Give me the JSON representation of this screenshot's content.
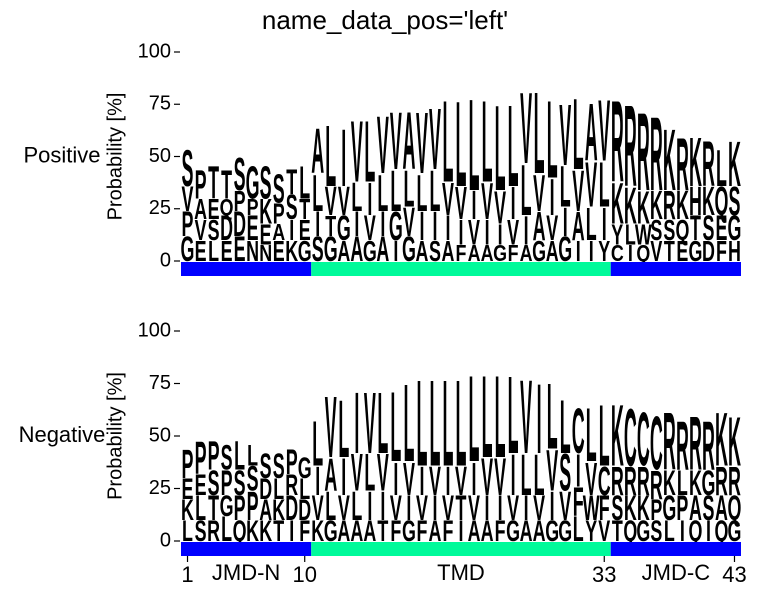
{
  "title": "name_data_pos='left'",
  "xlim": [
    1,
    43
  ],
  "xticks": [
    1,
    10,
    33,
    43
  ],
  "regions": [
    {
      "name": "JMD-N",
      "start": 1,
      "end": 10,
      "color": "#0000ff"
    },
    {
      "name": "TMD",
      "start": 11,
      "end": 33,
      "color": "#00fa9a"
    },
    {
      "name": "JMD-C",
      "start": 34,
      "end": 43,
      "color": "#0000ff"
    }
  ],
  "letter_colors": {
    "A": "#000000",
    "V": "#000000",
    "L": "#000000",
    "I": "#000000",
    "F": "#000000",
    "M": "#000000",
    "W": "#000000",
    "P": "#000000",
    "G": "#33cc33",
    "S": "#33cc33",
    "T": "#33cc33",
    "Y": "#33cc33",
    "C": "#33cc33",
    "K": "#1f3fc8",
    "R": "#1f3fc8",
    "H": "#1f3fc8",
    "D": "#d40000",
    "E": "#d40000",
    "N": "#cc00cc",
    "Q": "#cc00cc"
  },
  "chart_data": [
    {
      "type": "logo",
      "name": "Positive",
      "ylabel": "Probability [%]",
      "ylim": [
        0,
        100
      ],
      "yticks": [
        0,
        25,
        50,
        75,
        100
      ],
      "positions": [
        {
          "letters": "SVPG",
          "values": [
            18,
            12,
            12,
            12
          ]
        },
        {
          "letters": "PAVE",
          "values": [
            14,
            10,
            10,
            10
          ]
        },
        {
          "letters": "TESL",
          "values": [
            16,
            10,
            10,
            10
          ]
        },
        {
          "letters": "TQDE",
          "values": [
            14,
            8,
            12,
            10
          ]
        },
        {
          "letters": "SPDE",
          "values": [
            16,
            10,
            12,
            12
          ]
        },
        {
          "letters": "GPEN",
          "values": [
            16,
            8,
            12,
            10
          ]
        },
        {
          "letters": "SKEN",
          "values": [
            16,
            12,
            10,
            8
          ]
        },
        {
          "letters": "SPAE",
          "values": [
            14,
            10,
            8,
            10
          ]
        },
        {
          "letters": "TSIK",
          "values": [
            12,
            12,
            10,
            10
          ]
        },
        {
          "letters": "LTEG",
          "values": [
            16,
            10,
            10,
            10
          ]
        },
        {
          "letters": "ALIS",
          "values": [
            22,
            18,
            12,
            12
          ]
        },
        {
          "letters": "LVTG",
          "values": [
            30,
            14,
            10,
            12
          ]
        },
        {
          "letters": "IVGA",
          "values": [
            28,
            14,
            12,
            10
          ]
        },
        {
          "letters": "VLIA",
          "values": [
            30,
            14,
            12,
            12
          ]
        },
        {
          "letters": "LIVG",
          "values": [
            30,
            16,
            12,
            10
          ]
        },
        {
          "letters": "VLIA",
          "values": [
            28,
            18,
            12,
            12
          ]
        },
        {
          "letters": "VLGI",
          "values": [
            28,
            20,
            14,
            10
          ]
        },
        {
          "letters": "ALVG",
          "values": [
            28,
            18,
            14,
            12
          ]
        },
        {
          "letters": "VLIA",
          "values": [
            30,
            18,
            14,
            10
          ]
        },
        {
          "letters": "VLIS",
          "values": [
            30,
            20,
            14,
            10
          ]
        },
        {
          "letters": "LVIA",
          "values": [
            40,
            16,
            12,
            10
          ]
        },
        {
          "letters": "LVIF",
          "values": [
            42,
            16,
            12,
            8
          ]
        },
        {
          "letters": "LIVA",
          "values": [
            45,
            14,
            12,
            8
          ]
        },
        {
          "letters": "LVIA",
          "values": [
            40,
            18,
            12,
            8
          ]
        },
        {
          "letters": "LVIG",
          "values": [
            42,
            16,
            10,
            8
          ]
        },
        {
          "letters": "LIVF",
          "values": [
            40,
            16,
            12,
            8
          ]
        },
        {
          "letters": "VLIA",
          "values": [
            35,
            25,
            14,
            8
          ]
        },
        {
          "letters": "LVAG",
          "values": [
            40,
            18,
            14,
            10
          ]
        },
        {
          "letters": "LIVA",
          "values": [
            38,
            18,
            12,
            10
          ]
        },
        {
          "letters": "VLIG",
          "values": [
            30,
            20,
            14,
            12
          ]
        },
        {
          "letters": "LVAI",
          "values": [
            35,
            20,
            14,
            10
          ]
        },
        {
          "letters": "AVLI",
          "values": [
            28,
            22,
            16,
            10
          ]
        },
        {
          "letters": "VLIY",
          "values": [
            30,
            22,
            16,
            10
          ]
        },
        {
          "letters": "RKYC",
          "values": [
            40,
            20,
            10,
            8
          ]
        },
        {
          "letters": "RKLI",
          "values": [
            40,
            18,
            10,
            8
          ]
        },
        {
          "letters": "RKWQ",
          "values": [
            38,
            16,
            10,
            8
          ]
        },
        {
          "letters": "RKSV",
          "values": [
            36,
            14,
            10,
            10
          ]
        },
        {
          "letters": "KRST",
          "values": [
            30,
            14,
            10,
            10
          ]
        },
        {
          "letters": "RKQE",
          "values": [
            26,
            14,
            10,
            10
          ]
        },
        {
          "letters": "KHTG",
          "values": [
            24,
            14,
            12,
            10
          ]
        },
        {
          "letters": "RKSD",
          "values": [
            22,
            14,
            12,
            10
          ]
        },
        {
          "letters": "LQEF",
          "values": [
            18,
            14,
            12,
            10
          ]
        },
        {
          "letters": "KSGH",
          "values": [
            22,
            14,
            12,
            10
          ]
        }
      ]
    },
    {
      "type": "logo",
      "name": "Negative",
      "ylabel": "Probability [%]",
      "ylim": [
        0,
        100
      ],
      "yticks": [
        0,
        25,
        50,
        75,
        100
      ],
      "positions": [
        {
          "letters": "PEKL",
          "values": [
            14,
            10,
            10,
            10
          ]
        },
        {
          "letters": "PELS",
          "values": [
            16,
            10,
            12,
            10
          ]
        },
        {
          "letters": "PSTR",
          "values": [
            14,
            12,
            12,
            10
          ]
        },
        {
          "letters": "SPGL",
          "values": [
            12,
            12,
            10,
            12
          ]
        },
        {
          "letters": "LSPQ",
          "values": [
            14,
            12,
            12,
            10
          ]
        },
        {
          "letters": "LSPK",
          "values": [
            10,
            12,
            14,
            10
          ]
        },
        {
          "letters": "SDAK",
          "values": [
            12,
            10,
            10,
            10
          ]
        },
        {
          "letters": "SLKT",
          "values": [
            12,
            10,
            10,
            10
          ]
        },
        {
          "letters": "PRDI",
          "values": [
            12,
            10,
            12,
            10
          ]
        },
        {
          "letters": "GLDF",
          "values": [
            10,
            10,
            10,
            10
          ]
        },
        {
          "letters": "LIVK",
          "values": [
            22,
            14,
            12,
            10
          ]
        },
        {
          "letters": "VALG",
          "values": [
            30,
            16,
            14,
            10
          ]
        },
        {
          "letters": "LIVA",
          "values": [
            28,
            18,
            12,
            10
          ]
        },
        {
          "letters": "IVLA",
          "values": [
            30,
            18,
            14,
            10
          ]
        },
        {
          "letters": "VLIA",
          "values": [
            30,
            18,
            14,
            10
          ]
        },
        {
          "letters": "LVIT",
          "values": [
            30,
            18,
            14,
            10
          ]
        },
        {
          "letters": "LIVF",
          "values": [
            34,
            16,
            12,
            10
          ]
        },
        {
          "letters": "LVIG",
          "values": [
            38,
            16,
            12,
            10
          ]
        },
        {
          "letters": "LIVF",
          "values": [
            42,
            14,
            12,
            10
          ]
        },
        {
          "letters": "LVIA",
          "values": [
            42,
            14,
            12,
            10
          ]
        },
        {
          "letters": "LIVF",
          "values": [
            42,
            14,
            12,
            10
          ]
        },
        {
          "letters": "LVTI",
          "values": [
            42,
            14,
            12,
            10
          ]
        },
        {
          "letters": "LIVA",
          "values": [
            42,
            16,
            12,
            10
          ]
        },
        {
          "letters": "LVIA",
          "values": [
            40,
            18,
            12,
            10
          ]
        },
        {
          "letters": "LVIF",
          "values": [
            40,
            18,
            12,
            10
          ]
        },
        {
          "letters": "LIVG",
          "values": [
            38,
            20,
            12,
            10
          ]
        },
        {
          "letters": "VLIA",
          "values": [
            36,
            20,
            12,
            10
          ]
        },
        {
          "letters": "ILVA",
          "values": [
            34,
            20,
            12,
            10
          ]
        },
        {
          "letters": "LVIG",
          "values": [
            32,
            20,
            14,
            10
          ]
        },
        {
          "letters": "LSVG",
          "values": [
            26,
            18,
            14,
            10
          ]
        },
        {
          "letters": "CIFL",
          "values": [
            22,
            16,
            14,
            12
          ]
        },
        {
          "letters": "LVWY",
          "values": [
            26,
            16,
            12,
            10
          ]
        },
        {
          "letters": "LCFV",
          "values": [
            30,
            14,
            12,
            10
          ]
        },
        {
          "letters": "KRST",
          "values": [
            30,
            14,
            12,
            10
          ]
        },
        {
          "letters": "CRKQ",
          "values": [
            28,
            14,
            12,
            10
          ]
        },
        {
          "letters": "CRKG",
          "values": [
            26,
            14,
            12,
            10
          ]
        },
        {
          "letters": "CRPS",
          "values": [
            26,
            14,
            10,
            10
          ]
        },
        {
          "letters": "RKGL",
          "values": [
            28,
            12,
            12,
            10
          ]
        },
        {
          "letters": "RLPI",
          "values": [
            24,
            12,
            12,
            10
          ]
        },
        {
          "letters": "RKAQ",
          "values": [
            26,
            12,
            12,
            10
          ]
        },
        {
          "letters": "RGSI",
          "values": [
            24,
            12,
            12,
            10
          ]
        },
        {
          "letters": "KRAQ",
          "values": [
            26,
            14,
            12,
            10
          ]
        },
        {
          "letters": "KRQG",
          "values": [
            24,
            14,
            12,
            10
          ]
        }
      ]
    }
  ]
}
